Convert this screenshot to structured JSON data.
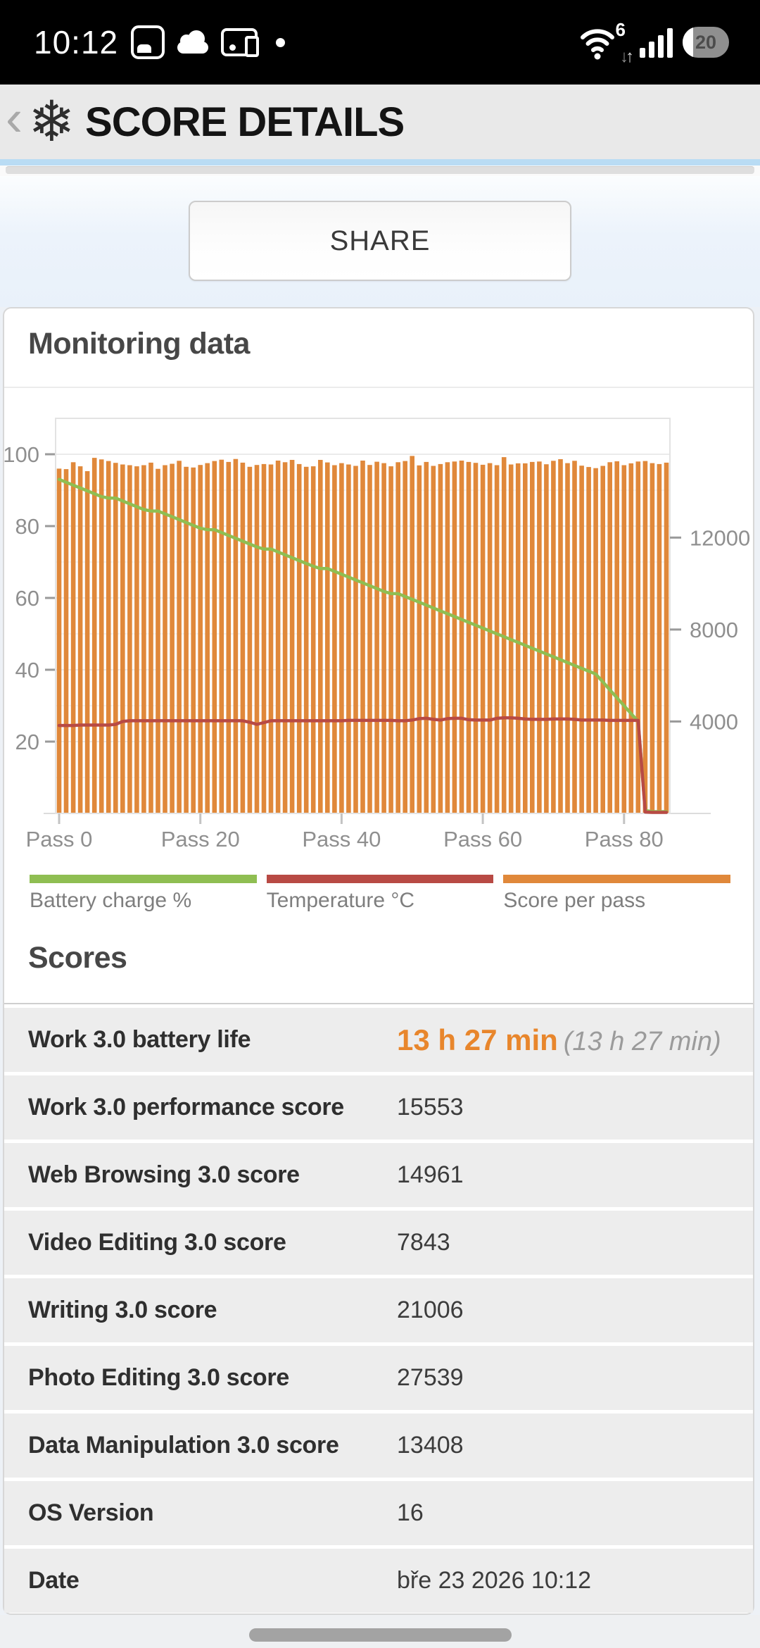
{
  "status_bar": {
    "time": "10:12",
    "battery_percent": "20",
    "wifi_generation": "6",
    "icons": {
      "screenshot-icon": "corner-bracket-photo",
      "cloud-icon": "filled-cloud",
      "cast-icon": "screen-and-phone",
      "notification-dot-icon": "•",
      "wifi-icon": "three-arcs-with-dot",
      "signal-icon": "four-bars",
      "battery-icon": "pill-20-percent"
    }
  },
  "header": {
    "back_glyph": "‹",
    "logo_glyph": "❄",
    "title": "SCORE DETAILS"
  },
  "share": {
    "label": "SHARE"
  },
  "monitoring": {
    "title": "Monitoring data"
  },
  "chart_data": {
    "type": "bar",
    "title": "Monitoring data",
    "x_axis": {
      "tick_labels": [
        "Pass 0",
        "Pass 20",
        "Pass 40",
        "Pass 60",
        "Pass 80"
      ],
      "tick_passes": [
        0,
        20,
        40,
        60,
        80
      ]
    },
    "left_axis": {
      "ticks": [
        20,
        40,
        60,
        80,
        100
      ],
      "range": [
        0,
        110
      ],
      "unit": "% / °C"
    },
    "right_axis": {
      "ticks": [
        4000,
        8000,
        12000
      ],
      "unit": "score",
      "score_per_left_unit": 156.25
    },
    "grid": "horizontal-every-10",
    "legend_position": "below",
    "series": [
      {
        "name": "Battery charge %",
        "type": "line",
        "color": "#8fbe52",
        "axis": "left",
        "values": [
          93,
          92.2,
          91.4,
          90.6,
          89.8,
          89,
          88.2,
          87.8,
          87.8,
          87,
          86.2,
          85.4,
          84.6,
          84.2,
          84.2,
          83.4,
          82.6,
          81.8,
          81,
          80.2,
          79.4,
          79,
          79,
          78.2,
          77.4,
          76.6,
          75.8,
          75,
          74.2,
          73.6,
          73.6,
          72.8,
          72,
          71.2,
          70.4,
          69.6,
          68.8,
          68.2,
          68.2,
          67.4,
          66.6,
          65.8,
          65,
          64.2,
          63.4,
          62.6,
          61.8,
          61.2,
          61.2,
          60.4,
          59.6,
          58.8,
          58,
          57.2,
          56.4,
          55.6,
          54.8,
          54,
          53.2,
          52.4,
          51.6,
          50.8,
          50,
          49.2,
          48.4,
          47.6,
          46.8,
          46,
          45.2,
          44.4,
          43.6,
          42.8,
          42,
          41.2,
          40.4,
          39.6,
          38.8,
          36.6,
          34.4,
          32.2,
          30,
          27.8,
          25.6,
          0.8,
          0.5,
          0.5,
          0.5
        ]
      },
      {
        "name": "Temperature °C",
        "type": "line",
        "color": "#b84a44",
        "axis": "left",
        "values": [
          24.5,
          24.5,
          24.5,
          24.6,
          24.6,
          24.6,
          24.6,
          24.6,
          24.8,
          25.6,
          25.8,
          25.8,
          25.8,
          25.8,
          25.8,
          25.8,
          25.8,
          25.8,
          25.8,
          25.8,
          25.8,
          25.8,
          25.8,
          25.8,
          25.8,
          25.8,
          25.8,
          25.4,
          24.8,
          25.3,
          25.8,
          25.8,
          25.8,
          25.8,
          25.8,
          25.8,
          25.8,
          25.8,
          25.8,
          25.8,
          25.8,
          25.9,
          25.9,
          25.9,
          25.9,
          25.9,
          25.9,
          25.9,
          25.8,
          25.8,
          26,
          26.4,
          26.5,
          26.2,
          26,
          26.4,
          26.5,
          26.5,
          26.1,
          26,
          26,
          26,
          26.5,
          26.6,
          26.6,
          26.5,
          26.3,
          26.2,
          26.2,
          26.2,
          26.3,
          26.3,
          26.3,
          26.2,
          26,
          26,
          26,
          26,
          25.9,
          25.9,
          25.9,
          25.9,
          25.9,
          0.4,
          0.3,
          0.3,
          0.3
        ]
      },
      {
        "name": "Score per pass",
        "type": "bar",
        "color": "#e0883a",
        "axis": "right",
        "values": [
          15000,
          14980,
          15280,
          15100,
          14890,
          15470,
          15400,
          15330,
          15250,
          15180,
          15150,
          15100,
          15150,
          15260,
          14990,
          15150,
          15210,
          15340,
          15080,
          15050,
          15160,
          15240,
          15330,
          15390,
          15290,
          15420,
          15260,
          15080,
          15160,
          15200,
          15180,
          15350,
          15280,
          15380,
          15200,
          15080,
          15100,
          15380,
          15270,
          15150,
          15240,
          15180,
          15120,
          15350,
          15160,
          15300,
          15240,
          15100,
          15280,
          15330,
          15550,
          15140,
          15290,
          15120,
          15200,
          15280,
          15310,
          15350,
          15290,
          15250,
          15170,
          15240,
          15150,
          15500,
          15180,
          15230,
          15230,
          15290,
          15310,
          15190,
          15340,
          15410,
          15240,
          15340,
          15130,
          15070,
          15020,
          15120,
          15280,
          15320,
          15150,
          15230,
          15310,
          15330,
          15240,
          15200,
          15260
        ]
      }
    ]
  },
  "legend": [
    {
      "label": "Battery charge %",
      "color": "#8fbe52"
    },
    {
      "label": "Temperature °C",
      "color": "#b84a44"
    },
    {
      "label": "Score per pass",
      "color": "#e0883a"
    }
  ],
  "scores": {
    "title": "Scores",
    "rows": [
      {
        "label": "Work 3.0 battery life",
        "value": "13 h 27 min",
        "value_secondary": "(13 h 27 min)",
        "highlight": true
      },
      {
        "label": "Work 3.0 performance score",
        "value": "15553"
      },
      {
        "label": "Web Browsing 3.0 score",
        "value": "14961"
      },
      {
        "label": "Video Editing 3.0 score",
        "value": "7843"
      },
      {
        "label": "Writing 3.0 score",
        "value": "21006"
      },
      {
        "label": "Photo Editing 3.0 score",
        "value": "27539"
      },
      {
        "label": "Data Manipulation 3.0 score",
        "value": "13408"
      },
      {
        "label": "OS Version",
        "value": "16"
      },
      {
        "label": "Date",
        "value": "bře 23 2026 10:12"
      }
    ]
  }
}
